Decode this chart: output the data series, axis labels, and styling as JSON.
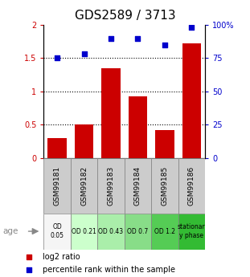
{
  "title": "GDS2589 / 3713",
  "categories": [
    "GSM99181",
    "GSM99182",
    "GSM99183",
    "GSM99184",
    "GSM99185",
    "GSM99186"
  ],
  "bar_values": [
    0.3,
    0.5,
    1.35,
    0.93,
    0.42,
    1.72
  ],
  "percentile_values": [
    75,
    78,
    90,
    90,
    85,
    98
  ],
  "bar_color": "#cc0000",
  "dot_color": "#0000cc",
  "ylim_left": [
    0,
    2
  ],
  "ylim_right": [
    0,
    100
  ],
  "yticks_left": [
    0,
    0.5,
    1.0,
    1.5,
    2.0
  ],
  "yticks_right": [
    0,
    25,
    50,
    75,
    100
  ],
  "yticklabels_left": [
    "0",
    "0.5",
    "1",
    "1.5",
    "2"
  ],
  "yticklabels_right": [
    "0",
    "25",
    "50",
    "75",
    "100%"
  ],
  "hlines": [
    0.5,
    1.0,
    1.5
  ],
  "od_labels": [
    "OD\n0.05",
    "OD 0.21",
    "OD 0.43",
    "OD 0.7",
    "OD 1.2",
    "stationar\ny phase"
  ],
  "od_colors": [
    "#f5f5f5",
    "#ccffcc",
    "#aaeeaa",
    "#88dd88",
    "#55cc55",
    "#33bb33"
  ],
  "gsm_row_color": "#cccccc",
  "legend_items": [
    "log2 ratio",
    "percentile rank within the sample"
  ],
  "legend_colors": [
    "#cc0000",
    "#0000cc"
  ],
  "age_label": "age",
  "title_fontsize": 11,
  "bar_fontsize": 7,
  "tick_fontsize": 7,
  "label_fontsize": 6.5
}
